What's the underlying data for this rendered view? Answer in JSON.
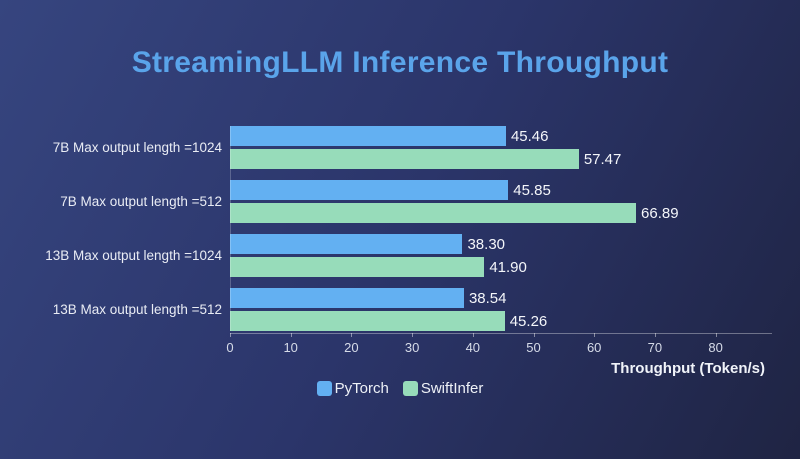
{
  "title": "StreamingLLM Inference Throughput",
  "chart_data": {
    "type": "bar",
    "orientation": "horizontal",
    "title": "StreamingLLM Inference Throughput",
    "categories": [
      "7B Max output length =1024",
      "7B Max output length =512",
      "13B Max output length =1024",
      "13B Max output length =512"
    ],
    "series": [
      {
        "name": "PyTorch",
        "color": "#63b0f2",
        "values": [
          45.46,
          45.85,
          38.3,
          38.54
        ]
      },
      {
        "name": "SwiftInfer",
        "color": "#97dcba",
        "values": [
          57.47,
          66.89,
          41.9,
          45.26
        ]
      }
    ],
    "xlabel": "Throughput (Token/s)",
    "xlim": [
      0,
      80
    ],
    "xticks": [
      0,
      10,
      20,
      30,
      40,
      50,
      60,
      70,
      80
    ],
    "grid": false,
    "legend_position": "bottom-center",
    "value_label_decimals": 2
  },
  "colors": {
    "background_top_left": "#36457f",
    "background_mid": "#2b356a",
    "background_bottom_right": "#1f2443",
    "title": "#5aa4ea",
    "category_text": "#e9ecf4",
    "value_text": "#f4f6fa",
    "tick_text": "#d6dbe8",
    "axis_line": "rgba(255,255,255,0.35)"
  }
}
